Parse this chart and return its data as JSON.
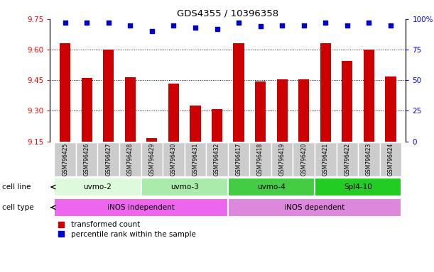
{
  "title": "GDS4355 / 10396358",
  "samples": [
    "GSM796425",
    "GSM796426",
    "GSM796427",
    "GSM796428",
    "GSM796429",
    "GSM796430",
    "GSM796431",
    "GSM796432",
    "GSM796417",
    "GSM796418",
    "GSM796419",
    "GSM796420",
    "GSM796421",
    "GSM796422",
    "GSM796423",
    "GSM796424"
  ],
  "bar_values": [
    9.63,
    9.46,
    9.6,
    9.465,
    9.165,
    9.435,
    9.325,
    9.31,
    9.63,
    9.445,
    9.455,
    9.455,
    9.63,
    9.545,
    9.6,
    9.47
  ],
  "dot_values": [
    97,
    97,
    97,
    95,
    90,
    95,
    93,
    92,
    97,
    94,
    95,
    95,
    97,
    95,
    97,
    95
  ],
  "ylim_left": [
    9.15,
    9.75
  ],
  "ylim_right": [
    0,
    100
  ],
  "yticks_left": [
    9.15,
    9.3,
    9.45,
    9.6,
    9.75
  ],
  "yticks_right": [
    0,
    25,
    50,
    75,
    100
  ],
  "ytick_right_labels": [
    "0",
    "25",
    "50",
    "75",
    "100%"
  ],
  "bar_color": "#cc0000",
  "dot_color": "#0000cc",
  "bar_bottom": 9.15,
  "cell_lines": [
    {
      "label": "uvmo-2",
      "start": 0,
      "end": 3,
      "color": "#ddfadd"
    },
    {
      "label": "uvmo-3",
      "start": 4,
      "end": 7,
      "color": "#aaeaaa"
    },
    {
      "label": "uvmo-4",
      "start": 8,
      "end": 11,
      "color": "#44cc44"
    },
    {
      "label": "Spl4-10",
      "start": 12,
      "end": 15,
      "color": "#22cc22"
    }
  ],
  "cell_types": [
    {
      "label": "iNOS independent",
      "start": 0,
      "end": 7,
      "color": "#ee66ee"
    },
    {
      "label": "iNOS dependent",
      "start": 8,
      "end": 15,
      "color": "#dd88dd"
    }
  ],
  "legend_items": [
    {
      "label": "transformed count",
      "color": "#cc0000",
      "marker": "s"
    },
    {
      "label": "percentile rank within the sample",
      "color": "#0000cc",
      "marker": "s"
    }
  ],
  "bg_color": "#ffffff",
  "grid_color": "#000000",
  "xtick_bg": "#cccccc"
}
